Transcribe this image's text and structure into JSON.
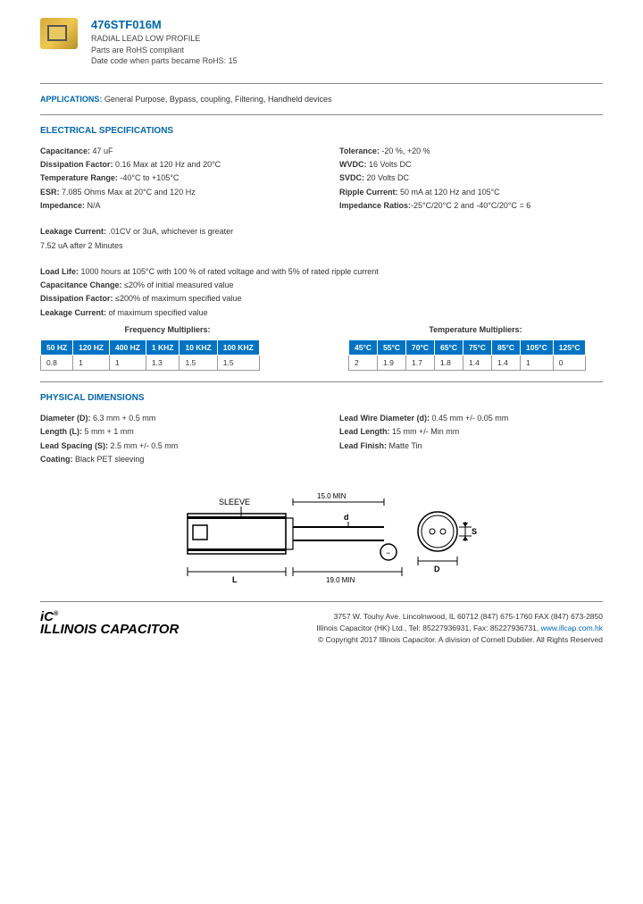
{
  "header": {
    "part_number": "476STF016M",
    "line1": "RADIAL LEAD LOW PROFILE",
    "line2": "Parts are RoHS compliant",
    "line3": "Date code when parts became RoHS: 15"
  },
  "applications": {
    "label": "APPLICATIONS:",
    "text": " General Purpose, Bypass, coupling, Filtering, Handheld devices"
  },
  "elec": {
    "title": "ELECTRICAL SPECIFICATIONS",
    "left": {
      "capacitance_l": "Capacitance:",
      "capacitance_v": " 47 uF",
      "df_l": "Dissipation Factor:",
      "df_v": " 0.16 Max at 120 Hz and 20°C",
      "temp_l": "Temperature Range:",
      "temp_v": " -40°C to +105°C",
      "esr_l": "ESR:",
      "esr_v": " 7.085 Ohms Max at 20°C and 120 Hz",
      "imp_l": "Impedance:",
      "imp_v": " N/A"
    },
    "right": {
      "tol_l": "Tolerance:",
      "tol_v": " -20 %, +20 %",
      "wvdc_l": "WVDC:",
      "wvdc_v": " 16 Volts DC",
      "svdc_l": "SVDC:",
      "svdc_v": " 20 Volts DC",
      "ripple_l": "Ripple Current:",
      "ripple_v": " 50 mA at 120 Hz and 105°C",
      "impratio_l": "Impedance Ratios:",
      "impratio_v": "-25°C/20°C 2 and -40°C/20°C = 6"
    },
    "leakage1_l": "Leakage Current:",
    "leakage1_v": " .01CV or 3uA, whichever is greater",
    "leakage2": "7.52 uA after 2 Minutes",
    "loadlife_l": "Load Life:",
    "loadlife_v": " 1000 hours at 105°C with 100 % of rated voltage and with 5% of rated ripple current",
    "capchg_l": "Capacitance Change:",
    "capchg_v": " ≤20% of initial measured value",
    "df2_l": "Dissipation Factor:",
    "df2_v": " ≤200% of maximum specified value",
    "leak2_l": "Leakage Current:",
    "leak2_v": " of maximum specified value"
  },
  "freq": {
    "title": "Frequency Multipliers:",
    "headers": [
      "50 HZ",
      "120 HZ",
      "400 HZ",
      "1 KHZ",
      "10 KHZ",
      "100 KHZ"
    ],
    "values": [
      "0.8",
      "1",
      "1",
      "1.3",
      "1.5",
      "1.5"
    ]
  },
  "temp": {
    "title": "Temperature Multipliers:",
    "headers": [
      "45°C",
      "55°C",
      "70°C",
      "65°C",
      "75°C",
      "85°C",
      "105°C",
      "125°C"
    ],
    "values": [
      "2",
      "1.9",
      "1.7",
      "1.8",
      "1.4",
      "1.4",
      "1",
      "0"
    ]
  },
  "phys": {
    "title": "PHYSICAL DIMENSIONS",
    "left": {
      "dia_l": "Diameter (D):",
      "dia_v": " 6.3 mm + 0.5 mm",
      "len_l": "Length (L):",
      "len_v": " 5 mm + 1 mm",
      "ls_l": "Lead Spacing (S):",
      "ls_v": " 2.5 mm +/- 0.5 mm",
      "coat_l": "Coating:",
      "coat_v": " Black PET sleeving"
    },
    "right": {
      "lwd_l": "Lead Wire Diameter (d):",
      "lwd_v": " 0.45 mm +/- 0.05 mm",
      "ll_l": "Lead Length:",
      "ll_v": " 15 mm +/- Min mm",
      "lf_l": "Lead Finish:",
      "lf_v": " Matte Tin"
    }
  },
  "diagram": {
    "sleeve": "SLEEVE",
    "d": "d",
    "s": "S",
    "D": "D",
    "L": "L",
    "min1": "15.0 MIN",
    "min2": "19.0 MIN"
  },
  "footer": {
    "brand_top": "iC",
    "brand_reg": "®",
    "brand_sub": "ILLINOIS CAPACITOR",
    "line1": "3757 W. Touhy Ave.   Lincolnwood, IL 60712   (847) 675-1760   FAX (847) 673-2850",
    "line2a": "Illinois Capacitor (HK) Ltd., Tel: 85227936931, Fax: 85227936731, ",
    "line2b": "www.illcap.com.hk",
    "line3": "© Copyright 2017 Illinois Capacitor. A division of Cornell Dubilier. All Rights Reserved"
  }
}
